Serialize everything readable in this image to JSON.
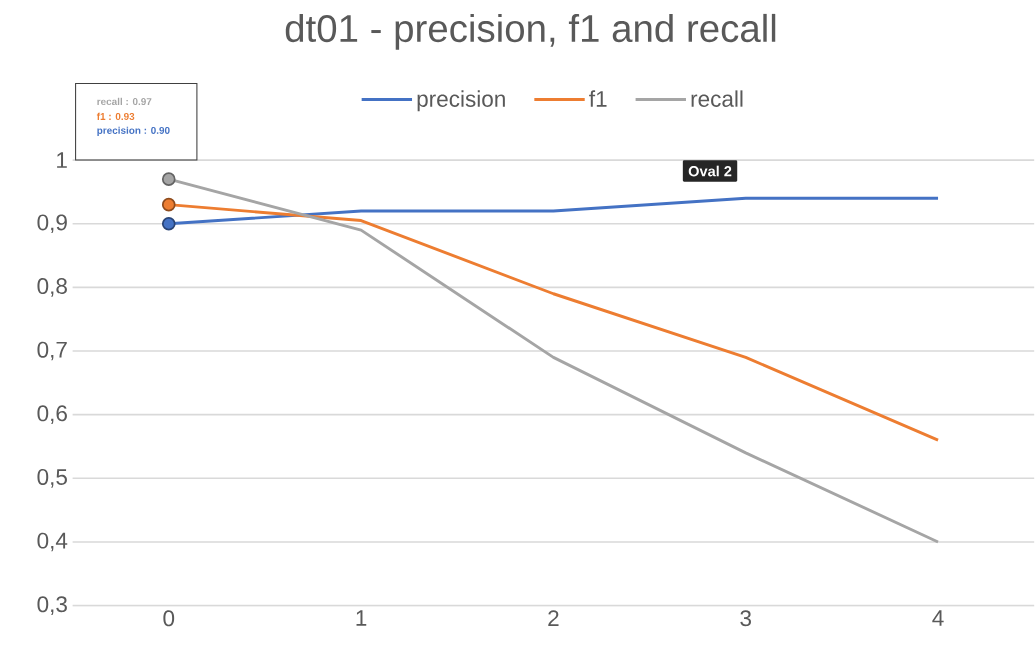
{
  "chart_data": {
    "type": "line",
    "title": "dt01 - precision, f1 and recall",
    "categories": [
      "0",
      "1",
      "2",
      "3",
      "4"
    ],
    "series": [
      {
        "name": "precision",
        "color": "#4472c4",
        "values": [
          0.9,
          0.92,
          0.92,
          0.94,
          0.94
        ]
      },
      {
        "name": "f1",
        "color": "#ed7d31",
        "values": [
          0.93,
          0.905,
          0.79,
          0.69,
          0.56
        ]
      },
      {
        "name": "recall",
        "color": "#a5a5a5",
        "values": [
          0.97,
          0.89,
          0.69,
          0.54,
          0.4
        ]
      }
    ],
    "ylim": [
      0.3,
      1
    ],
    "yticks": [
      {
        "value": 0.3,
        "label": "0,3"
      },
      {
        "value": 0.4,
        "label": "0,4"
      },
      {
        "value": 0.5,
        "label": "0,5"
      },
      {
        "value": 0.6,
        "label": "0,6"
      },
      {
        "value": 0.7,
        "label": "0,7"
      },
      {
        "value": 0.8,
        "label": "0,8"
      },
      {
        "value": 0.9,
        "label": "0,9"
      },
      1
    ],
    "grid": "y",
    "legend": "top",
    "annotations": [
      "recall : 0.97",
      "f1 : 0.93",
      "precision : 0.90",
      "Oval 2"
    ]
  }
}
